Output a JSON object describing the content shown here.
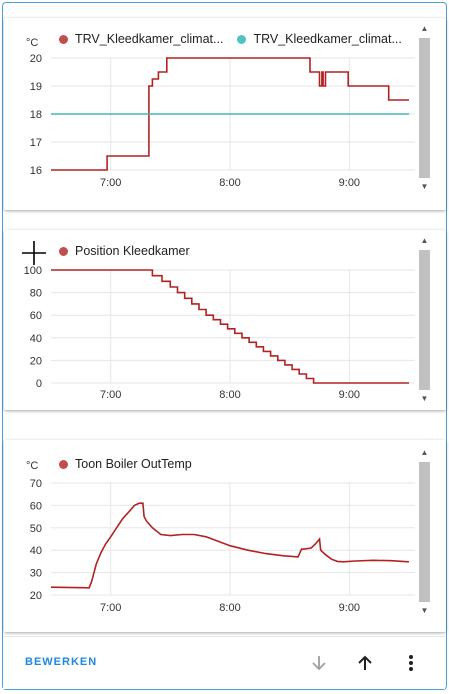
{
  "charts": [
    {
      "unit": "°C",
      "legend": [
        {
          "label": "TRV_Kleedkamer_climat...",
          "color": "#c0504d"
        },
        {
          "label": "TRV_Kleedkamer_climat...",
          "color": "#4ec2c4"
        }
      ]
    },
    {
      "unit": "",
      "legend": [
        {
          "label": "Position Kleedkamer",
          "color": "#c0504d"
        }
      ]
    },
    {
      "unit": "°C",
      "legend": [
        {
          "label": "Toon Boiler OutTemp",
          "color": "#c0504d"
        }
      ]
    }
  ],
  "chart_data": [
    {
      "type": "line",
      "xlabel": "",
      "ylabel": "°C",
      "x_ticks": [
        "7:00",
        "8:00",
        "9:00"
      ],
      "y_ticks": [
        16,
        17,
        18,
        19,
        20
      ],
      "ylim": [
        16,
        20
      ],
      "xlim_hours": [
        6.5,
        9.55
      ],
      "series": [
        {
          "name": "TRV_Kleedkamer_climat...",
          "color": "#b22222",
          "x": [
            6.5,
            6.97,
            6.97,
            7.32,
            7.32,
            7.35,
            7.35,
            7.4,
            7.4,
            7.47,
            7.47,
            8.67,
            8.67,
            8.75,
            8.75,
            8.77,
            8.77,
            8.78,
            8.78,
            8.8,
            8.8,
            8.99,
            8.99,
            9.33,
            9.33,
            9.5
          ],
          "y": [
            16,
            16,
            16.5,
            16.5,
            19,
            19,
            19.25,
            19.25,
            19.5,
            19.5,
            20,
            20,
            19.5,
            19.5,
            19.0,
            19.0,
            19.5,
            19.5,
            19.0,
            19.0,
            19.5,
            19.5,
            19,
            19,
            18.5,
            18.5
          ]
        },
        {
          "name": "TRV_Kleedkamer_climat...",
          "color": "#40b8b8",
          "x": [
            6.5,
            9.5
          ],
          "y": [
            18,
            18
          ]
        }
      ],
      "grid": true
    },
    {
      "type": "line",
      "xlabel": "",
      "ylabel": "",
      "x_ticks": [
        "7:00",
        "8:00",
        "9:00"
      ],
      "y_ticks": [
        0,
        20,
        40,
        60,
        80,
        100
      ],
      "ylim": [
        0,
        100
      ],
      "xlim_hours": [
        6.5,
        9.55
      ],
      "series": [
        {
          "name": "Position Kleedkamer",
          "color": "#b22222",
          "x": [
            6.5,
            7.35,
            7.35,
            7.43,
            7.43,
            7.5,
            7.5,
            7.56,
            7.56,
            7.62,
            7.62,
            7.68,
            7.68,
            7.74,
            7.74,
            7.8,
            7.8,
            7.86,
            7.86,
            7.92,
            7.92,
            7.98,
            7.98,
            8.04,
            8.04,
            8.1,
            8.1,
            8.16,
            8.16,
            8.22,
            8.22,
            8.28,
            8.28,
            8.34,
            8.34,
            8.4,
            8.4,
            8.46,
            8.46,
            8.52,
            8.52,
            8.58,
            8.58,
            8.64,
            8.64,
            8.7,
            8.7,
            8.76,
            8.76,
            8.82,
            8.82,
            8.88,
            8.88,
            8.94,
            8.94,
            9.5
          ],
          "y": [
            100,
            100,
            95,
            95,
            90,
            90,
            85,
            85,
            80,
            80,
            75,
            75,
            70,
            70,
            65,
            65,
            60,
            60,
            56,
            56,
            52,
            52,
            48,
            48,
            44,
            44,
            40,
            40,
            36,
            36,
            32,
            32,
            28,
            28,
            24,
            24,
            20,
            20,
            16,
            16,
            12,
            12,
            8,
            8,
            4,
            4,
            0,
            0,
            0,
            0,
            0,
            0,
            0,
            0,
            0,
            0
          ]
        }
      ],
      "grid": true
    },
    {
      "type": "line",
      "xlabel": "",
      "ylabel": "°C",
      "x_ticks": [
        "7:00",
        "8:00",
        "9:00"
      ],
      "y_ticks": [
        20,
        30,
        40,
        50,
        60,
        70
      ],
      "ylim": [
        20,
        70
      ],
      "xlim_hours": [
        6.5,
        9.55
      ],
      "series": [
        {
          "name": "Toon Boiler OutTemp",
          "color": "#b22222",
          "x": [
            6.5,
            6.82,
            6.84,
            6.86,
            6.88,
            6.92,
            6.96,
            7.0,
            7.05,
            7.1,
            7.15,
            7.2,
            7.24,
            7.27,
            7.28,
            7.3,
            7.35,
            7.42,
            7.5,
            7.6,
            7.7,
            7.8,
            7.9,
            8.0,
            8.15,
            8.3,
            8.45,
            8.57,
            8.6,
            8.62,
            8.68,
            8.72,
            8.75,
            8.76,
            8.8,
            8.85,
            8.9,
            8.95,
            9.05,
            9.2,
            9.35,
            9.5
          ],
          "y": [
            23.5,
            23.2,
            26,
            30,
            34,
            39,
            43,
            46,
            50,
            54,
            57,
            60,
            61,
            61,
            55,
            53,
            50,
            47,
            46.5,
            47,
            47,
            46,
            44,
            42,
            40,
            38.5,
            37.5,
            37,
            40.5,
            40.5,
            41,
            43,
            45,
            40,
            38,
            36,
            35,
            34.8,
            35.2,
            35.5,
            35.3,
            34.8
          ]
        }
      ],
      "grid": true
    }
  ],
  "footer": {
    "edit_label": "BEWERKEN"
  },
  "icons": {
    "move_down": "arrow-down-icon",
    "move_up": "arrow-up-icon",
    "menu": "more-vertical-icon"
  }
}
